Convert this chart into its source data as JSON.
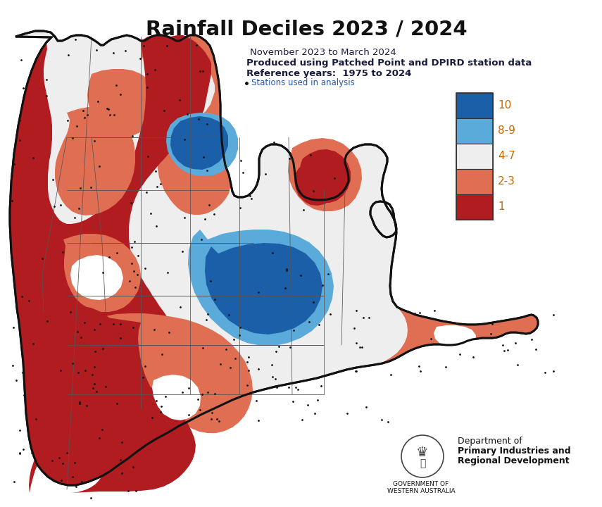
{
  "title": "Rainfall Deciles 2023 / 2024",
  "subtitle_line1": "November 2023 to March 2024",
  "subtitle_line2": "Produced using Patched Point and DPIRD station data",
  "subtitle_line3": "Reference years:  1975 to 2024",
  "stations_label": "Stations used in analysis",
  "title_color": "#111111",
  "subtitle_color": "#1a1a3e",
  "stations_color": "#2255aa",
  "legend_labels": [
    "10",
    "8-9",
    "4-7",
    "2-3",
    "1"
  ],
  "legend_colors": [
    "#1a5fa8",
    "#5aabda",
    "#eeeeee",
    "#df6e52",
    "#b01c20"
  ],
  "legend_label_color": "#cc6600",
  "background_color": "#ffffff",
  "dept_line1": "Department of",
  "dept_line2": "Primary Industries and",
  "dept_line3": "Regional Development",
  "dept_sub": "GOVERNMENT OF\nWESTERN AUSTRALIA",
  "figsize": [
    8.55,
    7.2
  ],
  "dpi": 100
}
